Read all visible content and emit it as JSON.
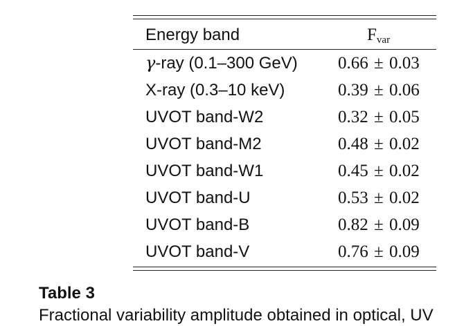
{
  "table": {
    "header": {
      "band": "Energy band",
      "value_main": "F",
      "value_sub": "var"
    },
    "rows": [
      {
        "symbol": "γ",
        "band": "-ray (0.1–300 GeV)",
        "value": "0.66",
        "pm": "±",
        "error": "0.03"
      },
      {
        "symbol": "",
        "band": "X-ray (0.3–10 keV)",
        "value": "0.39",
        "pm": "±",
        "error": "0.06"
      },
      {
        "symbol": "",
        "band": "UVOT band-W2",
        "value": "0.32",
        "pm": "±",
        "error": "0.05"
      },
      {
        "symbol": "",
        "band": "UVOT band-M2",
        "value": "0.48",
        "pm": "±",
        "error": "0.02"
      },
      {
        "symbol": "",
        "band": "UVOT band-W1",
        "value": "0.45",
        "pm": "±",
        "error": "0.02"
      },
      {
        "symbol": "",
        "band": "UVOT band-U",
        "value": "0.53",
        "pm": "±",
        "error": "0.02"
      },
      {
        "symbol": "",
        "band": "UVOT band-B",
        "value": "0.82",
        "pm": "±",
        "error": "0.09"
      },
      {
        "symbol": "",
        "band": "UVOT band-V",
        "value": "0.76",
        "pm": "±",
        "error": "0.09"
      }
    ]
  },
  "caption": {
    "title": "Table 3",
    "text": "Fractional variability amplitude obtained in optical, UV"
  }
}
